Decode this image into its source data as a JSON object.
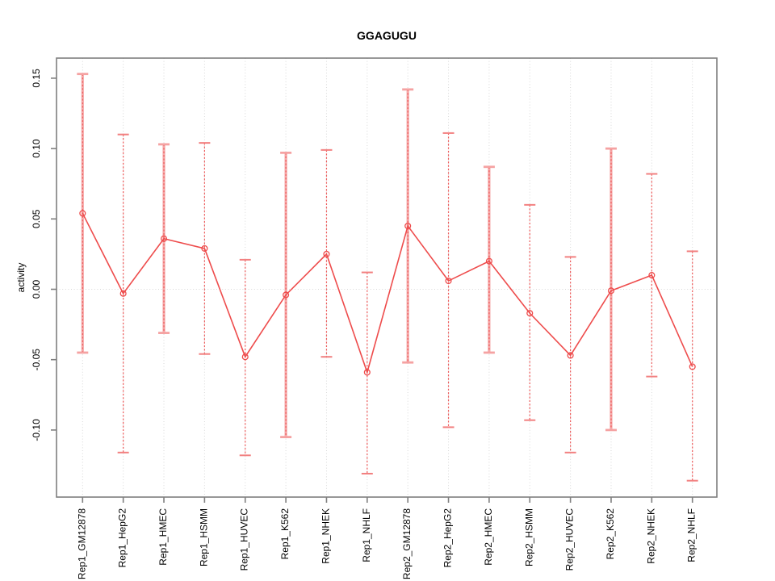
{
  "chart_data": {
    "type": "line",
    "title": "GGAGUGU",
    "ylabel": "activity",
    "xlabel": "",
    "categories": [
      "Rep1_GM12878",
      "Rep1_HepG2",
      "Rep1_HMEC",
      "Rep1_HSMM",
      "Rep1_HUVEC",
      "Rep1_K562",
      "Rep1_NHEK",
      "Rep1_NHLF",
      "Rep2_GM12878",
      "Rep2_HepG2",
      "Rep2_HMEC",
      "Rep2_HSMM",
      "Rep2_HUVEC",
      "Rep2_K562",
      "Rep2_NHEK",
      "Rep2_NHLF"
    ],
    "series": [
      {
        "name": "activity",
        "values": [
          0.054,
          -0.003,
          0.036,
          0.029,
          -0.048,
          -0.004,
          0.025,
          -0.059,
          0.045,
          0.006,
          0.02,
          -0.017,
          -0.047,
          -0.001,
          0.01,
          -0.055
        ],
        "lower": [
          -0.045,
          -0.116,
          -0.031,
          -0.046,
          -0.118,
          -0.105,
          -0.048,
          -0.131,
          -0.052,
          -0.098,
          -0.045,
          -0.093,
          -0.116,
          -0.1,
          -0.062,
          -0.136
        ],
        "upper": [
          0.153,
          0.11,
          0.103,
          0.104,
          0.021,
          0.097,
          0.099,
          0.012,
          0.142,
          0.111,
          0.087,
          0.06,
          0.023,
          0.1,
          0.082,
          0.027
        ],
        "thick_bar": [
          true,
          false,
          true,
          false,
          false,
          true,
          false,
          false,
          true,
          false,
          true,
          false,
          false,
          true,
          false,
          false
        ]
      }
    ],
    "y_ticks": [
      0.15,
      0.1,
      0.05,
      0.0,
      -0.05,
      -0.1
    ],
    "y_tick_labels": [
      "0.15",
      "0.10",
      "0.05",
      "0.00",
      "-0.05",
      "-0.10"
    ],
    "ylim": [
      -0.148,
      0.165
    ],
    "grid": {
      "vertical_dotted_per_category": true,
      "zero_line_dotted": true
    },
    "legend": null
  },
  "colors": {
    "series_red": "#ee4c4c",
    "errorbar_thin_dash": "#ee5b5b",
    "errorbar_thick": "#f5aaaa",
    "cap_thin": "#f28080",
    "cap_thick": "#f5a2a2",
    "axis_box": "#7f7f7f",
    "grid_dotted": "#d8d8d8",
    "text": "#000000",
    "background": "#ffffff"
  }
}
